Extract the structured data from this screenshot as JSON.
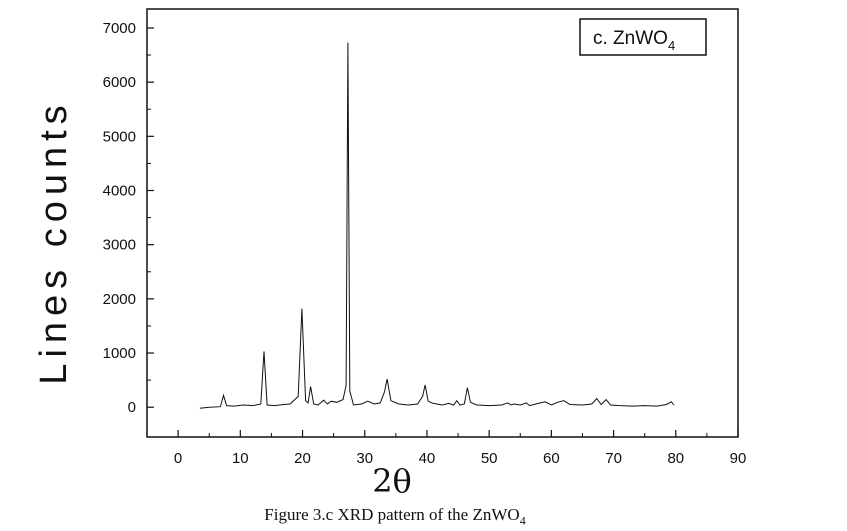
{
  "chart_data": {
    "type": "line",
    "xlabel": "2θ",
    "ylabel": "Lines counts",
    "xlim": [
      -5,
      90
    ],
    "ylim": [
      -550,
      7350
    ],
    "x_ticks": [
      0,
      10,
      20,
      30,
      40,
      50,
      60,
      70,
      80,
      90
    ],
    "y_ticks": [
      0,
      1000,
      2000,
      3000,
      4000,
      5000,
      6000,
      7000
    ],
    "grid": false,
    "legend_position": "top-right",
    "series": [
      {
        "name": "c. ZnWO4",
        "name_main": "c. ZnWO",
        "name_sub": "4",
        "x": [
          3.5,
          5,
          6.8,
          7.3,
          7.8,
          9,
          10.5,
          12,
          13.3,
          13.8,
          14.3,
          15.5,
          17,
          18,
          19.3,
          19.9,
          20.5,
          20.9,
          21.3,
          21.8,
          22.5,
          23.4,
          24,
          24.6,
          25.5,
          26.5,
          27.0,
          27.3,
          27.6,
          28.2,
          29.5,
          30.5,
          31.5,
          32.5,
          33.2,
          33.6,
          34.2,
          35.5,
          37,
          38.5,
          39.3,
          39.7,
          40.2,
          41,
          42.5,
          43.5,
          44.3,
          44.8,
          45.3,
          46.0,
          46.5,
          47.0,
          48,
          50,
          52,
          53,
          53.5,
          54,
          55,
          56,
          56.5,
          57.5,
          59,
          60,
          61,
          62,
          63,
          65,
          66.5,
          67.3,
          68,
          68.8,
          69.5,
          71,
          73,
          75,
          77,
          78.5,
          79.3,
          79.7
        ],
        "y": [
          -20,
          0,
          10,
          220,
          30,
          20,
          40,
          30,
          60,
          1030,
          40,
          30,
          50,
          60,
          200,
          1820,
          120,
          80,
          380,
          60,
          40,
          130,
          60,
          110,
          90,
          140,
          400,
          6730,
          300,
          40,
          60,
          110,
          60,
          80,
          290,
          520,
          120,
          60,
          40,
          60,
          200,
          410,
          110,
          70,
          40,
          70,
          40,
          120,
          40,
          60,
          360,
          90,
          40,
          30,
          40,
          80,
          40,
          60,
          40,
          80,
          30,
          60,
          100,
          40,
          90,
          120,
          50,
          40,
          60,
          160,
          50,
          140,
          40,
          30,
          20,
          30,
          20,
          50,
          100,
          40
        ]
      }
    ]
  },
  "caption": {
    "main": "Figure 3.c XRD pattern of the ZnWO",
    "sub": "4"
  }
}
